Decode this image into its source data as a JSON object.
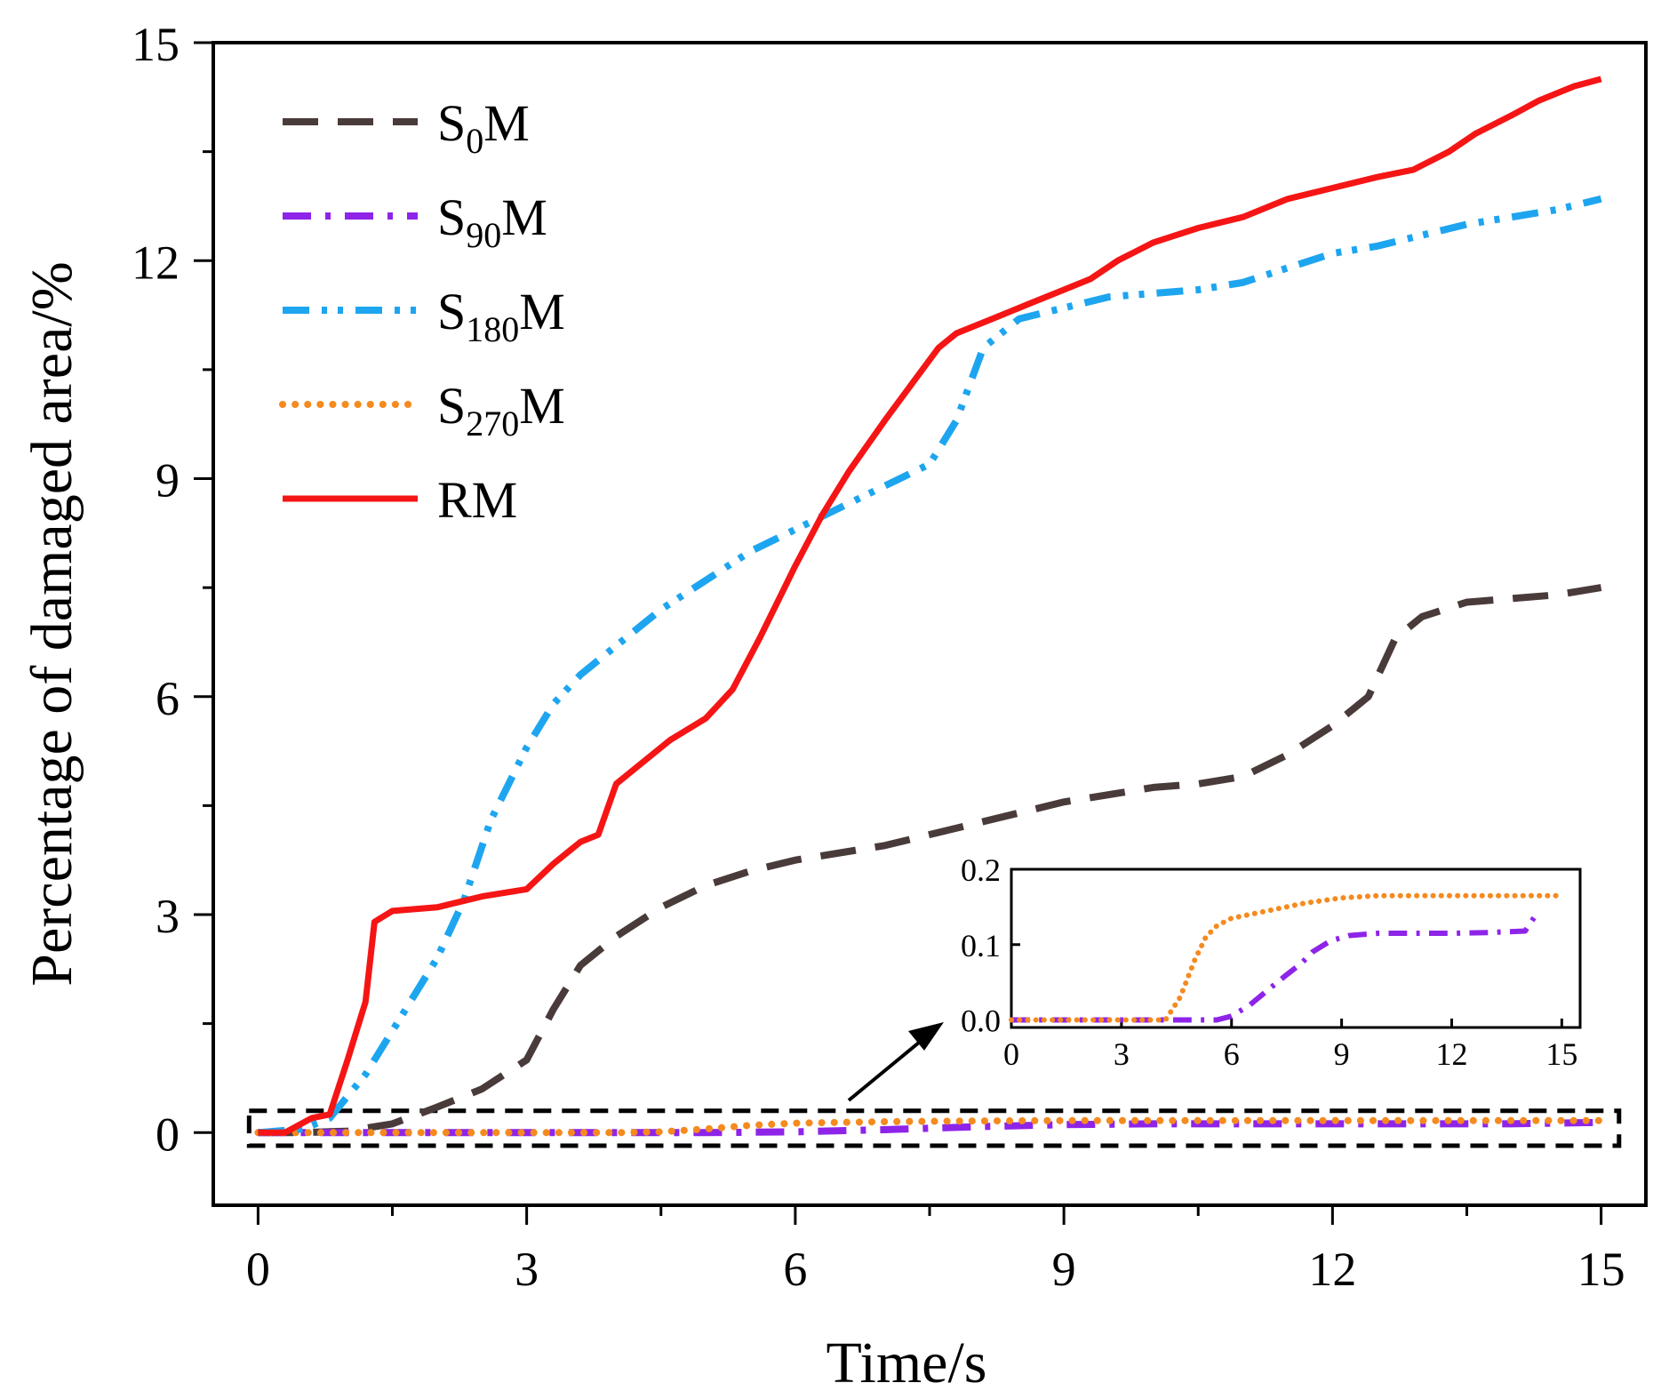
{
  "chart_data": {
    "type": "line",
    "title": "",
    "xlabel": "Time/s",
    "ylabel": "Percentage of damaged area/%",
    "xlim": [
      -0.5,
      15.5
    ],
    "ylim": [
      -1,
      15
    ],
    "xticks": [
      0,
      3,
      6,
      9,
      12,
      15
    ],
    "xtick_labels": [
      "0",
      "3",
      "6",
      "9",
      "12",
      "15"
    ],
    "yticks": [
      0,
      3,
      6,
      9,
      12,
      15
    ],
    "ytick_labels": [
      "0",
      "3",
      "6",
      "9",
      "12",
      "15"
    ],
    "legend_position": "top-left",
    "series": [
      {
        "name": "S0M",
        "label_main": "S",
        "label_sub": "0",
        "label_suffix": "M",
        "color": "#4a3b3b",
        "style": "dashed",
        "x": [
          0,
          0.5,
          1,
          1.5,
          2,
          2.5,
          3,
          3.3,
          3.6,
          4,
          4.5,
          5,
          5.5,
          6,
          7,
          8,
          9,
          10,
          10.5,
          11,
          11.5,
          12,
          12.4,
          12.7,
          13,
          13.5,
          14,
          14.5,
          15
        ],
        "y": [
          0,
          0,
          0.02,
          0.12,
          0.35,
          0.6,
          1.0,
          1.7,
          2.3,
          2.7,
          3.1,
          3.4,
          3.6,
          3.75,
          3.95,
          4.25,
          4.55,
          4.75,
          4.8,
          4.9,
          5.2,
          5.6,
          6.0,
          6.8,
          7.1,
          7.3,
          7.35,
          7.4,
          7.5
        ]
      },
      {
        "name": "S90M",
        "label_main": "S",
        "label_sub": "90",
        "label_suffix": "M",
        "color": "#8e24e8",
        "style": "dashdot",
        "x": [
          0,
          1,
          2,
          3,
          4,
          5,
          6,
          7,
          8,
          9,
          10,
          11,
          12,
          13,
          14,
          15
        ],
        "y": [
          0,
          0,
          0,
          0,
          0,
          0,
          0.01,
          0.04,
          0.08,
          0.11,
          0.12,
          0.12,
          0.12,
          0.12,
          0.12,
          0.14
        ]
      },
      {
        "name": "S180M",
        "label_main": "S",
        "label_sub": "180",
        "label_suffix": "M",
        "color": "#1ea5f0",
        "style": "dashdotdot",
        "x": [
          0,
          0.5,
          0.8,
          1.2,
          1.6,
          2,
          2.3,
          2.6,
          3,
          3.3,
          3.6,
          4,
          4.5,
          5,
          5.5,
          6,
          6.5,
          7,
          7.5,
          7.8,
          8.1,
          8.5,
          9,
          9.5,
          10,
          10.5,
          11,
          11.5,
          12,
          12.5,
          13,
          13.5,
          14,
          14.5,
          15
        ],
        "y": [
          0,
          0.05,
          0.2,
          0.8,
          1.6,
          2.4,
          3.2,
          4.3,
          5.3,
          5.9,
          6.3,
          6.7,
          7.2,
          7.6,
          8.0,
          8.3,
          8.6,
          8.9,
          9.2,
          9.8,
          10.8,
          11.2,
          11.35,
          11.5,
          11.55,
          11.6,
          11.7,
          11.9,
          12.1,
          12.2,
          12.35,
          12.5,
          12.6,
          12.7,
          12.85
        ]
      },
      {
        "name": "S270M",
        "label_main": "S",
        "label_sub": "270",
        "label_suffix": "M",
        "color": "#f58a1f",
        "style": "dotted",
        "x": [
          0,
          1,
          2,
          3,
          4,
          4.5,
          5,
          5.5,
          6,
          7,
          8,
          9,
          10,
          11,
          12,
          13,
          14,
          15
        ],
        "y": [
          0,
          0,
          0,
          0,
          0,
          0.01,
          0.05,
          0.1,
          0.13,
          0.15,
          0.16,
          0.165,
          0.165,
          0.165,
          0.165,
          0.165,
          0.165,
          0.165
        ]
      },
      {
        "name": "RM",
        "label_main": "RM",
        "label_sub": "",
        "label_suffix": "",
        "color": "#f51515",
        "style": "solid",
        "x": [
          0,
          0.3,
          0.6,
          0.8,
          1.0,
          1.2,
          1.3,
          1.5,
          2,
          2.5,
          3,
          3.3,
          3.6,
          3.8,
          4.0,
          4.3,
          4.6,
          5.0,
          5.3,
          5.6,
          6.0,
          6.3,
          6.6,
          7.0,
          7.3,
          7.6,
          7.8,
          8.2,
          8.6,
          9.0,
          9.3,
          9.6,
          10.0,
          10.5,
          11.0,
          11.5,
          12.0,
          12.5,
          12.9,
          13.3,
          13.6,
          14.0,
          14.3,
          14.7,
          15.0
        ],
        "y": [
          0,
          0,
          0.2,
          0.25,
          1.0,
          1.8,
          2.9,
          3.05,
          3.1,
          3.25,
          3.35,
          3.7,
          4.0,
          4.1,
          4.8,
          5.1,
          5.4,
          5.7,
          6.1,
          6.8,
          7.8,
          8.5,
          9.1,
          9.8,
          10.3,
          10.8,
          11.0,
          11.2,
          11.4,
          11.6,
          11.75,
          12.0,
          12.25,
          12.45,
          12.6,
          12.85,
          13.0,
          13.15,
          13.25,
          13.5,
          13.75,
          14.0,
          14.2,
          14.4,
          14.5
        ]
      }
    ],
    "inset": {
      "xlim": [
        0,
        15.5
      ],
      "ylim": [
        -0.01,
        0.2
      ],
      "xticks": [
        0,
        3,
        6,
        9,
        12,
        15
      ],
      "xtick_labels": [
        "0",
        "3",
        "6",
        "9",
        "12",
        "15"
      ],
      "yticks": [
        0.0,
        0.1,
        0.2
      ],
      "ytick_labels": [
        "0.0",
        "0.1",
        "0.2"
      ],
      "series": [
        {
          "name": "S90M",
          "color": "#8e24e8",
          "style": "dashdot",
          "x": [
            0,
            3,
            5,
            5.6,
            6,
            6.5,
            7,
            7.5,
            7.9,
            8.2,
            8.7,
            9.2,
            10,
            11,
            12,
            13,
            14,
            14.3
          ],
          "y": [
            0,
            0,
            0,
            0,
            0.005,
            0.02,
            0.04,
            0.06,
            0.075,
            0.09,
            0.105,
            0.112,
            0.115,
            0.115,
            0.115,
            0.116,
            0.118,
            0.14
          ]
        },
        {
          "name": "S270M",
          "color": "#f58a1f",
          "style": "dotted",
          "x": [
            0,
            3,
            4.2,
            4.6,
            5.0,
            5.3,
            5.6,
            6,
            7,
            8,
            9,
            10,
            11,
            12,
            13,
            14,
            15
          ],
          "y": [
            0,
            0,
            0,
            0.03,
            0.08,
            0.11,
            0.125,
            0.135,
            0.145,
            0.155,
            0.162,
            0.165,
            0.165,
            0.165,
            0.165,
            0.165,
            0.165
          ]
        }
      ]
    },
    "zoom_box": {
      "x_range": [
        -0.1,
        15.2
      ],
      "y_range": [
        -0.18,
        0.3
      ]
    }
  }
}
